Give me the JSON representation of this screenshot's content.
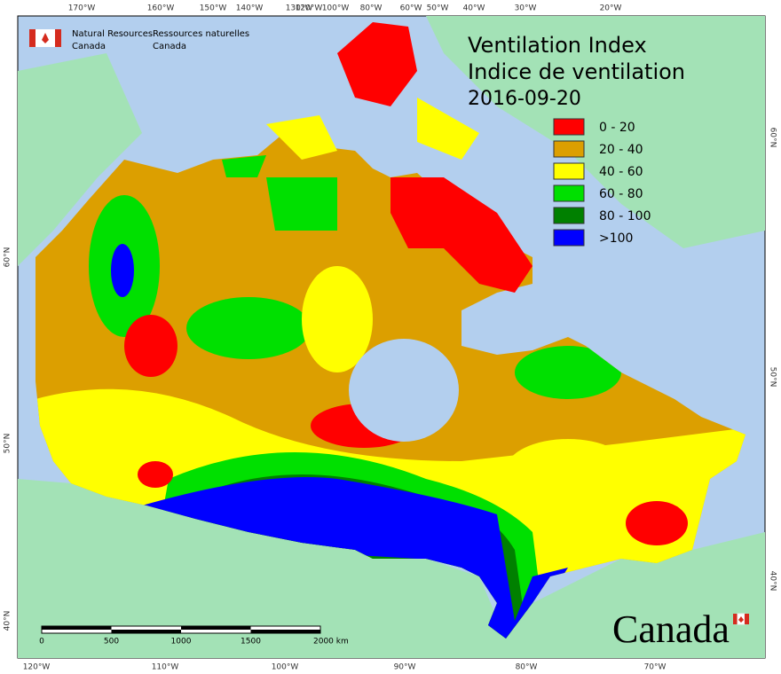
{
  "agency": {
    "en": [
      "Natural Resources",
      "Canada"
    ],
    "fr": [
      "Ressources naturelles",
      "Canada"
    ]
  },
  "title": [
    "Ventilation Index",
    "Indice de ventilation"
  ],
  "date": "2016-09-20",
  "legend": [
    {
      "label": "0 - 20",
      "color": "#ff0000"
    },
    {
      "label": "20 - 40",
      "color": "#dc9f00"
    },
    {
      "label": "40 - 60",
      "color": "#ffff00"
    },
    {
      "label": "60 - 80",
      "color": "#00e000"
    },
    {
      "label": "80 - 100",
      "color": "#008000"
    },
    {
      "label": ">100",
      "color": "#0000ff"
    }
  ],
  "graticule": {
    "top": [
      "170°W",
      "160°W",
      "150°W",
      "140°W",
      "130°W",
      "120°W",
      "100°W",
      "80°W",
      "60°W",
      "50°W",
      "40°W",
      "30°W",
      "20°W"
    ],
    "bottom": [
      "120°W",
      "110°W",
      "100°W",
      "90°W",
      "80°W",
      "70°W"
    ],
    "left": [
      "60°N",
      "50°N",
      "40°N"
    ],
    "right": [
      "60°N",
      "50°N",
      "40°N"
    ]
  },
  "scale_bar": [
    "0",
    "500",
    "1000",
    "1500",
    "2000 km"
  ],
  "wordmark": "Canada"
}
